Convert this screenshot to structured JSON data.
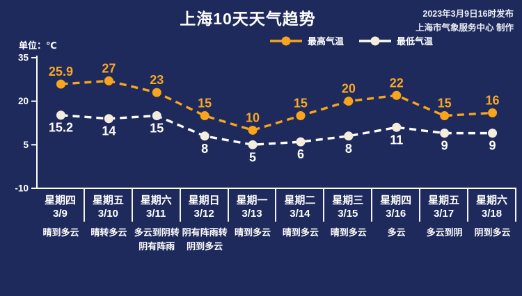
{
  "header": {
    "title": "上海10天天气趋势",
    "publish_line1": "2023年3月9日16时发布",
    "publish_line2": "上海市气象服务中心 制作"
  },
  "colors": {
    "background": "#1F2A5C",
    "axis": "#FFFFFF",
    "max_temp_accent": "#F8A41D",
    "min_temp_accent": "#FFFFFF",
    "min_marker_fill": "#F4EDDD",
    "max_label": "#F9A825"
  },
  "chart_data": {
    "type": "line",
    "title": "上海10天天气趋势",
    "unit_label": "单位：℃",
    "legend_position": "top",
    "grid": false,
    "categories": [
      "3/9",
      "3/10",
      "3/11",
      "3/12",
      "3/13",
      "3/14",
      "3/15",
      "3/16",
      "3/17",
      "3/18"
    ],
    "ylim": [
      -10,
      35
    ],
    "y_ticks": [
      35,
      20,
      5,
      -10
    ],
    "series": [
      {
        "id": "max-temp",
        "name": "最高气温",
        "values": [
          25.9,
          27,
          23,
          15,
          10,
          15,
          20,
          22,
          15,
          16
        ],
        "line_color": "#F8A41D",
        "marker_color": "#F8A41D",
        "label_color": "#F9A825",
        "label_position": "above"
      },
      {
        "id": "min-temp",
        "name": "最低气温",
        "values": [
          15.2,
          14,
          15,
          8,
          5,
          6,
          8,
          11,
          9,
          9
        ],
        "line_color": "#FFFFFF",
        "marker_color": "#F4EDDD",
        "label_color": "#FFFFFF",
        "label_position": "below"
      }
    ],
    "days": [
      {
        "weekday": "星期四",
        "date": "3/9",
        "weather": [
          "晴到多云"
        ]
      },
      {
        "weekday": "星期五",
        "date": "3/10",
        "weather": [
          "晴转多云"
        ]
      },
      {
        "weekday": "星期六",
        "date": "3/11",
        "weather": [
          "多云到阴转",
          "阴有阵雨"
        ]
      },
      {
        "weekday": "星期日",
        "date": "3/12",
        "weather": [
          "阴有阵雨转",
          "阴到多云"
        ]
      },
      {
        "weekday": "星期一",
        "date": "3/13",
        "weather": [
          "晴到多云"
        ]
      },
      {
        "weekday": "星期二",
        "date": "3/14",
        "weather": [
          "晴到多云"
        ]
      },
      {
        "weekday": "星期三",
        "date": "3/15",
        "weather": [
          "晴到多云"
        ]
      },
      {
        "weekday": "星期四",
        "date": "3/16",
        "weather": [
          "多云"
        ]
      },
      {
        "weekday": "星期五",
        "date": "3/17",
        "weather": [
          "多云到阴"
        ]
      },
      {
        "weekday": "星期六",
        "date": "3/18",
        "weather": [
          "阴到多云"
        ]
      }
    ]
  }
}
